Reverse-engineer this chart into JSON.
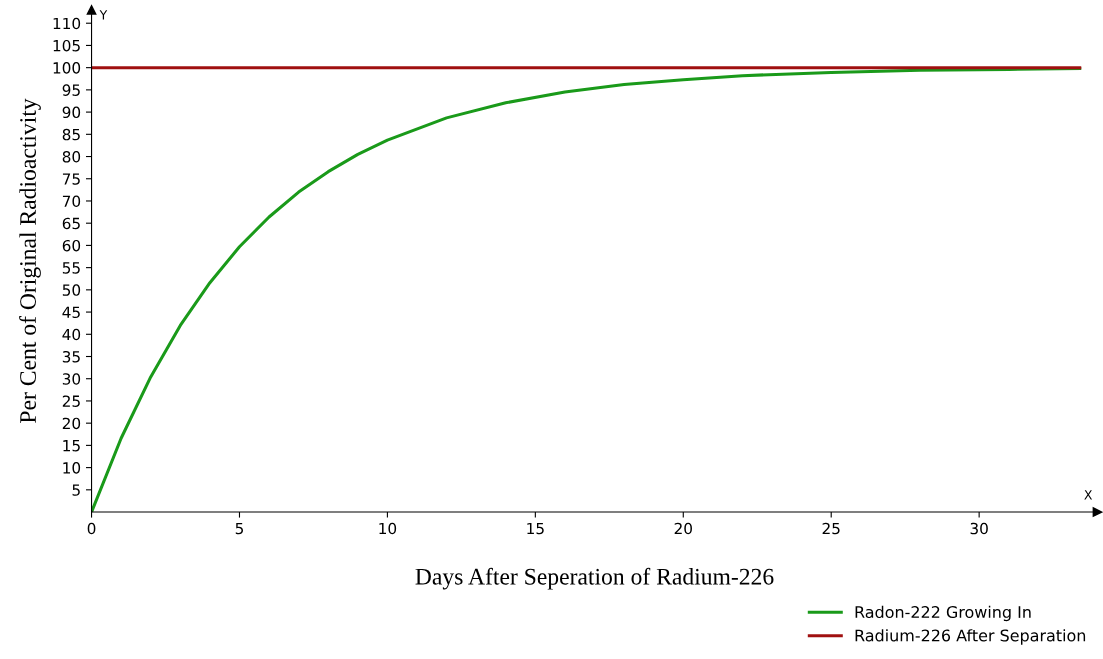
{
  "chart_data": {
    "type": "line",
    "xlabel": "Days After Seperation of Radium-226",
    "ylabel": "Per Cent of Original Radioactivity",
    "annotations": [
      "Y",
      "X"
    ],
    "series": [
      {
        "name": "Radon-222 Growing In",
        "color": "#1a9a1a",
        "x": [
          0,
          1,
          2,
          3,
          4,
          5,
          6,
          7,
          8,
          9,
          10,
          12,
          14,
          16,
          18,
          20,
          22,
          25,
          28,
          31,
          33.4
        ],
        "values": [
          0,
          16.6,
          30.4,
          42,
          51.6,
          59.7,
          66.4,
          72,
          76.6,
          80.5,
          83.7,
          88.7,
          92.1,
          94.5,
          96.2,
          97.3,
          98.2,
          98.9,
          99.4,
          99.6,
          99.8
        ]
      },
      {
        "name": "Radium-226 After Separation",
        "color": "#a01010",
        "x": [
          0,
          33.4
        ],
        "values": [
          100,
          100
        ]
      }
    ],
    "xlim": [
      0,
      34
    ],
    "ylim": [
      0,
      113
    ],
    "xticks": [
      0,
      5,
      10,
      15,
      20,
      25,
      30
    ],
    "yticks": [
      5,
      10,
      15,
      20,
      25,
      30,
      35,
      40,
      45,
      50,
      55,
      60,
      65,
      70,
      75,
      80,
      85,
      90,
      95,
      100,
      105,
      110
    ],
    "legend": "bottom right",
    "grid": false
  }
}
